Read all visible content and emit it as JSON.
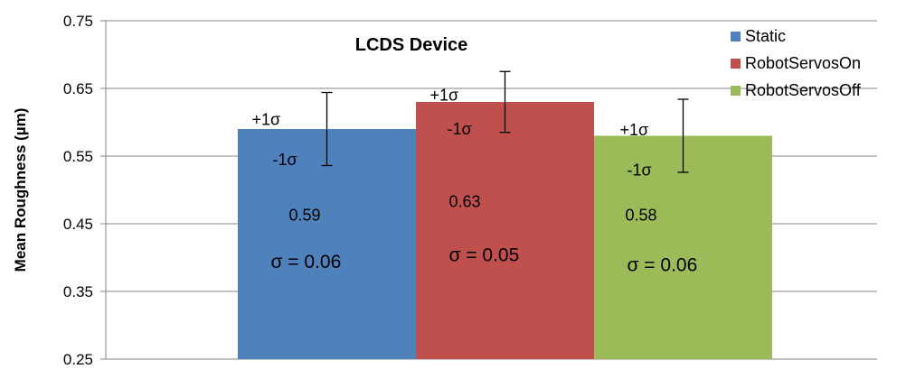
{
  "chart_data": {
    "type": "bar",
    "title": "LCDS Device",
    "xlabel": "",
    "ylabel": "Mean Roughness (µm)",
    "ylim": [
      0.25,
      0.75
    ],
    "yticks": [
      "0.25",
      "0.35",
      "0.45",
      "0.55",
      "0.65",
      "0.75"
    ],
    "grid": true,
    "legend_position": "top-right",
    "series": [
      {
        "name": "Static",
        "value": 0.59,
        "sigma": 0.06,
        "color": "#4F81BD",
        "value_label": "0.59",
        "sigma_label": "σ = 0.06",
        "plus_label": "+1σ",
        "minus_label": "-1σ"
      },
      {
        "name": "RobotServosOn",
        "value": 0.63,
        "sigma": 0.05,
        "color": "#C0504D",
        "value_label": "0.63",
        "sigma_label": "σ = 0.05",
        "plus_label": "+1σ",
        "minus_label": "-1σ"
      },
      {
        "name": "RobotServosOff",
        "value": 0.58,
        "sigma": 0.06,
        "color": "#9BBB59",
        "value_label": "0.58",
        "sigma_label": "σ = 0.06",
        "plus_label": "+1σ",
        "minus_label": "-1σ"
      }
    ]
  }
}
